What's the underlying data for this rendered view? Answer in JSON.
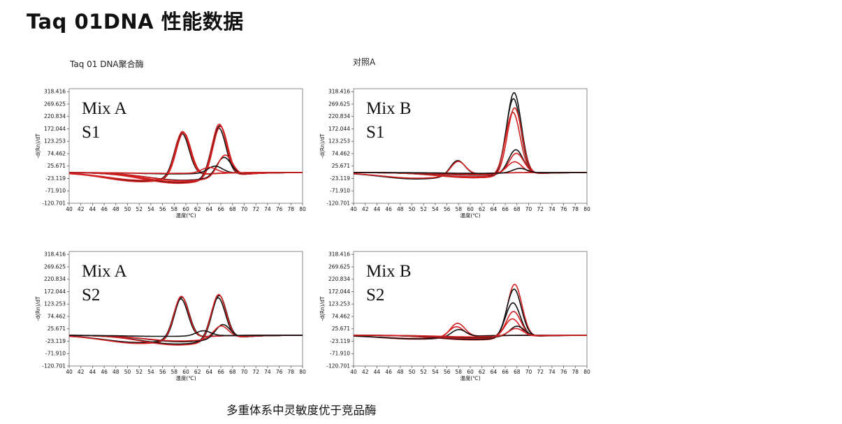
{
  "title": "Taq 01DNA 性能数据",
  "group_labels": {
    "left": "Taq 01 DNA聚合酶",
    "right": "对照A"
  },
  "caption": "多重体系中灵敏度优于竞品酶",
  "colors": {
    "black_series": "#111111",
    "red_series": "#d42020",
    "plot_border": "#8a8a8a",
    "background": "#ffffff"
  },
  "chart_data": [
    {
      "type": "line",
      "panel": [
        "Mix A",
        "S1"
      ],
      "xlabel": "温度(℃)",
      "ylabel": "-d(Rn)/dT",
      "xlim": [
        40,
        80
      ],
      "ylim": [
        -120.701,
        330
      ],
      "xticks": [
        "40",
        "42",
        "44",
        "46",
        "48",
        "50",
        "52",
        "54",
        "56",
        "58",
        "60",
        "62",
        "64",
        "66",
        "68",
        "70",
        "72",
        "74",
        "76",
        "78",
        "80"
      ],
      "yticks": [
        "318.416",
        "269.625",
        "220.834",
        "172.044",
        "123.253",
        "74.462",
        "25.671",
        "-23.119",
        "-71.910",
        "-120.701"
      ],
      "series": [
        {
          "group": "black",
          "peaks": [
            {
              "x": 59.5,
              "h": 175
            }
          ],
          "base": -35,
          "trend": 20
        },
        {
          "group": "black",
          "peaks": [
            {
              "x": 59.3,
              "h": 170
            }
          ],
          "base": -32,
          "trend": 18
        },
        {
          "group": "red",
          "peaks": [
            {
              "x": 59.4,
              "h": 180
            }
          ],
          "base": -36,
          "trend": 22
        },
        {
          "group": "red",
          "peaks": [
            {
              "x": 59.6,
              "h": 172
            }
          ],
          "base": -30,
          "trend": 18
        },
        {
          "group": "black",
          "peaks": [
            {
              "x": 65.8,
              "h": 205
            }
          ],
          "base": -40,
          "trend": 20
        },
        {
          "group": "black",
          "peaks": [
            {
              "x": 65.6,
              "h": 195
            }
          ],
          "base": -38,
          "trend": 18
        },
        {
          "group": "red",
          "peaks": [
            {
              "x": 65.7,
              "h": 212
            }
          ],
          "base": -42,
          "trend": 22
        },
        {
          "group": "red",
          "peaks": [
            {
              "x": 65.9,
              "h": 200
            }
          ],
          "base": -36,
          "trend": 18
        },
        {
          "group": "black",
          "peaks": [
            {
              "x": 66.5,
              "h": 75
            }
          ],
          "base": -30,
          "trend": 12
        },
        {
          "group": "red",
          "peaks": [
            {
              "x": 66.7,
              "h": 85
            }
          ],
          "base": -32,
          "trend": 14
        },
        {
          "group": "black",
          "peaks": [
            {
              "x": 65.0,
              "h": 28
            }
          ],
          "base": -5,
          "trend": 4
        },
        {
          "group": "red",
          "peaks": [
            {
              "x": 64.0,
              "h": 22
            }
          ],
          "base": -3,
          "trend": 3
        }
      ]
    },
    {
      "type": "line",
      "panel": [
        "Mix B",
        "S1"
      ],
      "xlabel": "温度(℃)",
      "ylabel": "-d(Rn)/dT",
      "xlim": [
        40,
        80
      ],
      "ylim": [
        -120.701,
        330
      ],
      "xticks": [
        "40",
        "42",
        "44",
        "46",
        "48",
        "50",
        "52",
        "54",
        "56",
        "58",
        "60",
        "62",
        "64",
        "66",
        "68",
        "70",
        "72",
        "74",
        "76",
        "78",
        "80"
      ],
      "yticks": [
        "318.416",
        "269.625",
        "220.834",
        "172.044",
        "123.253",
        "74.462",
        "25.671",
        "-23.119",
        "-71.910",
        "-120.701"
      ],
      "series": [
        {
          "group": "black",
          "peaks": [
            {
              "x": 57.8,
              "h": 60
            }
          ],
          "base": -25,
          "trend": 10
        },
        {
          "group": "red",
          "peaks": [
            {
              "x": 57.9,
              "h": 55
            }
          ],
          "base": -22,
          "trend": 8
        },
        {
          "group": "black",
          "peaks": [
            {
              "x": 67.5,
              "h": 325
            }
          ],
          "base": -20,
          "trend": 10
        },
        {
          "group": "black",
          "peaks": [
            {
              "x": 67.4,
              "h": 300
            }
          ],
          "base": -18,
          "trend": 8
        },
        {
          "group": "red",
          "peaks": [
            {
              "x": 67.6,
              "h": 265
            }
          ],
          "base": -20,
          "trend": 8
        },
        {
          "group": "red",
          "peaks": [
            {
              "x": 67.3,
              "h": 245
            }
          ],
          "base": -16,
          "trend": 6
        },
        {
          "group": "black",
          "peaks": [
            {
              "x": 67.8,
              "h": 95
            }
          ],
          "base": -10,
          "trend": 6
        },
        {
          "group": "red",
          "peaks": [
            {
              "x": 67.9,
              "h": 80
            }
          ],
          "base": -8,
          "trend": 4
        },
        {
          "group": "red",
          "peaks": [
            {
              "x": 67.6,
              "h": 45
            }
          ],
          "base": -5,
          "trend": 3
        },
        {
          "group": "black",
          "peaks": [
            {
              "x": 68.5,
              "h": 18
            }
          ],
          "base": -3,
          "trend": 2
        }
      ]
    },
    {
      "type": "line",
      "panel": [
        "Mix A",
        "S2"
      ],
      "xlabel": "温度(℃)",
      "ylabel": "-d(Rn)/dT",
      "xlim": [
        40,
        80
      ],
      "ylim": [
        -120.701,
        330
      ],
      "xticks": [
        "40",
        "42",
        "44",
        "46",
        "48",
        "50",
        "52",
        "54",
        "56",
        "58",
        "60",
        "62",
        "64",
        "66",
        "68",
        "70",
        "72",
        "74",
        "76",
        "78",
        "80"
      ],
      "yticks": [
        "318.416",
        "269.625",
        "220.834",
        "172.044",
        "123.253",
        "74.462",
        "25.671",
        "-23.119",
        "-71.910",
        "-120.701"
      ],
      "series": [
        {
          "group": "black",
          "peaks": [
            {
              "x": 59.3,
              "h": 165
            }
          ],
          "base": -30,
          "trend": 18
        },
        {
          "group": "black",
          "peaks": [
            {
              "x": 59.1,
              "h": 158
            }
          ],
          "base": -28,
          "trend": 16
        },
        {
          "group": "red",
          "peaks": [
            {
              "x": 59.2,
              "h": 170
            }
          ],
          "base": -32,
          "trend": 20
        },
        {
          "group": "black",
          "peaks": [
            {
              "x": 65.7,
              "h": 175
            }
          ],
          "base": -36,
          "trend": 18
        },
        {
          "group": "black",
          "peaks": [
            {
              "x": 65.5,
              "h": 165
            }
          ],
          "base": -34,
          "trend": 16
        },
        {
          "group": "red",
          "peaks": [
            {
              "x": 65.6,
              "h": 180
            }
          ],
          "base": -38,
          "trend": 20
        },
        {
          "group": "black",
          "peaks": [
            {
              "x": 66.3,
              "h": 55
            }
          ],
          "base": -25,
          "trend": 10
        },
        {
          "group": "red",
          "peaks": [
            {
              "x": 66.0,
              "h": 48
            }
          ],
          "base": -22,
          "trend": 8
        },
        {
          "group": "black",
          "peaks": [
            {
              "x": 63.0,
              "h": 20
            }
          ],
          "base": -4,
          "trend": 3
        }
      ]
    },
    {
      "type": "line",
      "panel": [
        "Mix B",
        "S2"
      ],
      "xlabel": "温度(℃)",
      "ylabel": "-d(Rn)/dT",
      "xlim": [
        40,
        80
      ],
      "ylim": [
        -120.701,
        330
      ],
      "xticks": [
        "40",
        "42",
        "44",
        "46",
        "48",
        "50",
        "52",
        "54",
        "56",
        "58",
        "60",
        "62",
        "64",
        "66",
        "68",
        "70",
        "72",
        "74",
        "76",
        "78",
        "80"
      ],
      "yticks": [
        "318.416",
        "269.625",
        "220.834",
        "172.044",
        "123.253",
        "74.462",
        "25.671",
        "-23.119",
        "-71.910",
        "-120.701"
      ],
      "series": [
        {
          "group": "red",
          "peaks": [
            {
              "x": 57.8,
              "h": 55
            }
          ],
          "base": -15,
          "trend": 6
        },
        {
          "group": "red",
          "peaks": [
            {
              "x": 57.6,
              "h": 40
            }
          ],
          "base": -12,
          "trend": 5
        },
        {
          "group": "black",
          "peaks": [
            {
              "x": 58.0,
              "h": 30
            }
          ],
          "base": -14,
          "trend": 5
        },
        {
          "group": "red",
          "peaks": [
            {
              "x": 67.6,
              "h": 210
            }
          ],
          "base": -18,
          "trend": 8
        },
        {
          "group": "black",
          "peaks": [
            {
              "x": 67.5,
              "h": 190
            }
          ],
          "base": -16,
          "trend": 7
        },
        {
          "group": "black",
          "peaks": [
            {
              "x": 67.3,
              "h": 135
            }
          ],
          "base": -14,
          "trend": 6
        },
        {
          "group": "red",
          "peaks": [
            {
              "x": 67.4,
              "h": 100
            }
          ],
          "base": -12,
          "trend": 5
        },
        {
          "group": "red",
          "peaks": [
            {
              "x": 67.2,
              "h": 70
            }
          ],
          "base": -10,
          "trend": 4
        },
        {
          "group": "black",
          "peaks": [
            {
              "x": 68.0,
              "h": 40
            }
          ],
          "base": -8,
          "trend": 3
        },
        {
          "group": "red",
          "peaks": [
            {
              "x": 67.8,
              "h": 30
            }
          ],
          "base": -6,
          "trend": 3
        }
      ]
    }
  ]
}
